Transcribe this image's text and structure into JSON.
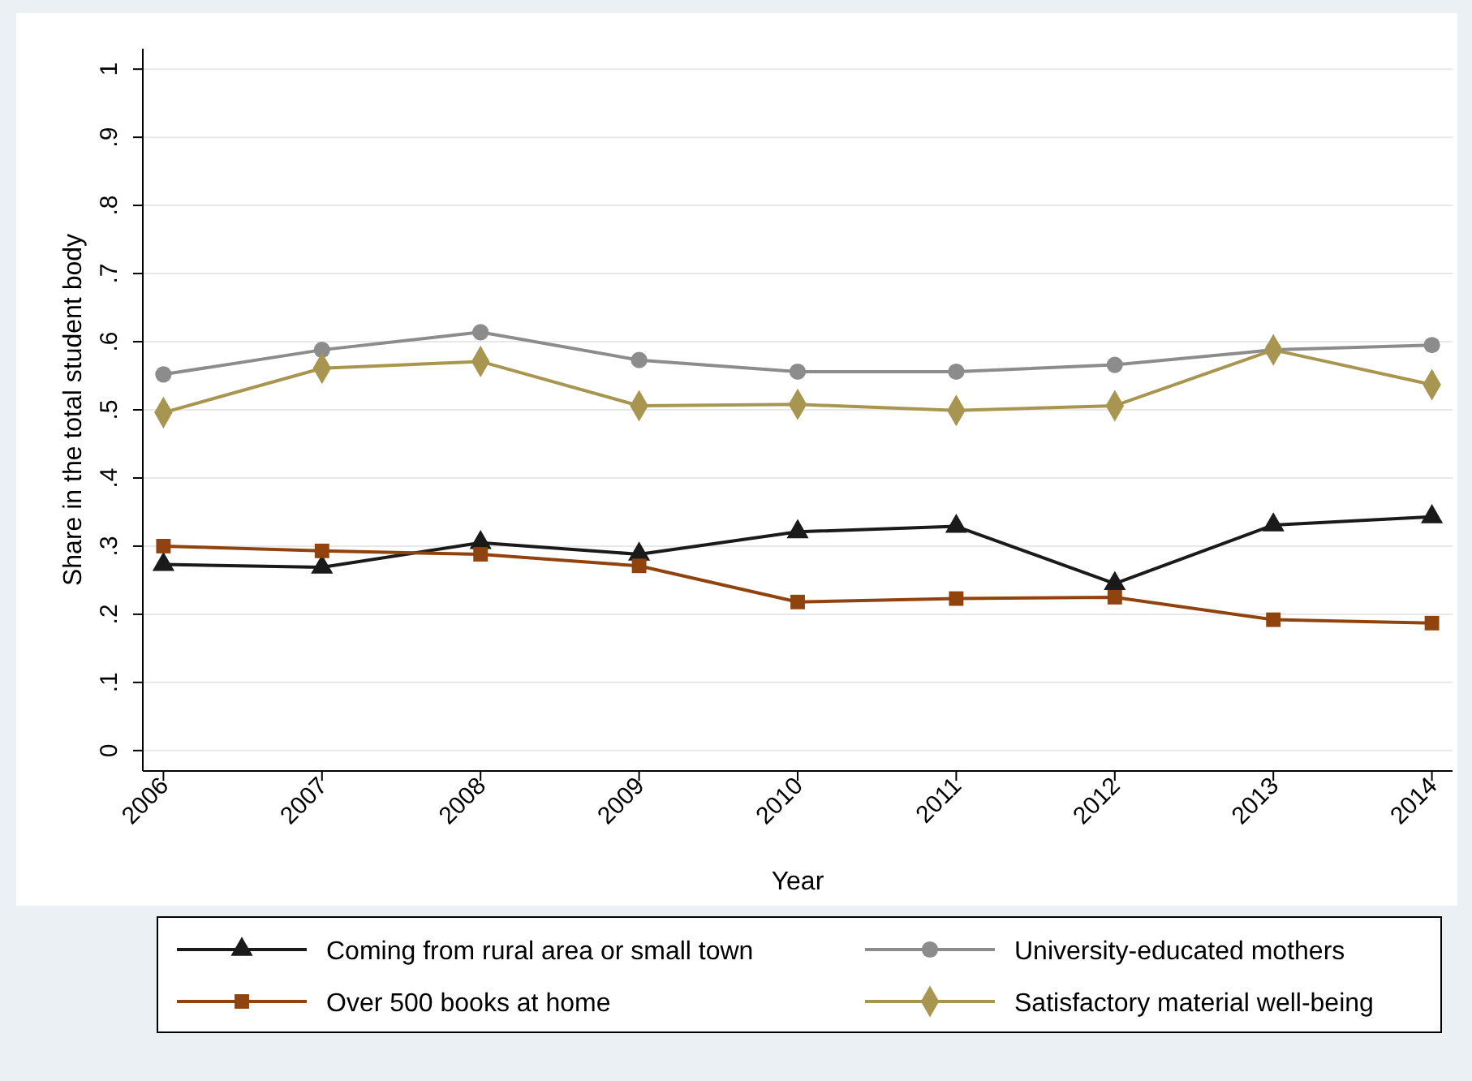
{
  "chart_data": {
    "type": "line",
    "xlabel": "Year",
    "ylabel": "Share in the total student body",
    "x": [
      2006,
      2007,
      2008,
      2009,
      2010,
      2011,
      2012,
      2013,
      2014
    ],
    "xlim": [
      2005.87,
      2014.13
    ],
    "xticks": [
      2006,
      2007,
      2008,
      2009,
      2010,
      2011,
      2012,
      2013,
      2014
    ],
    "ylim": [
      -0.03,
      1.03
    ],
    "yticks": [
      {
        "value": 0,
        "label": "0"
      },
      {
        "value": 0.1,
        "label": ".1"
      },
      {
        "value": 0.2,
        "label": ".2"
      },
      {
        "value": 0.3,
        "label": ".3"
      },
      {
        "value": 0.4,
        "label": ".4"
      },
      {
        "value": 0.5,
        "label": ".5"
      },
      {
        "value": 0.6,
        "label": ".6"
      },
      {
        "value": 0.7,
        "label": ".7"
      },
      {
        "value": 0.8,
        "label": ".8"
      },
      {
        "value": 0.9,
        "label": ".9"
      },
      {
        "value": 1,
        "label": "1"
      }
    ],
    "grid": "y",
    "legend": "bottom",
    "line_style": "solid",
    "series": [
      {
        "name": "Coming from rural area or small town",
        "color": "#1a1a1a",
        "marker": "triangle",
        "values": [
          0.273,
          0.269,
          0.305,
          0.288,
          0.321,
          0.329,
          0.245,
          0.331,
          0.343
        ]
      },
      {
        "name": "University-educated mothers",
        "color": "#8c8c8c",
        "marker": "circle",
        "values": [
          0.552,
          0.588,
          0.614,
          0.573,
          0.556,
          0.556,
          0.566,
          0.588,
          0.595
        ]
      },
      {
        "name": "Over 500 books at home",
        "color": "#90430e",
        "marker": "square",
        "values": [
          0.3,
          0.293,
          0.288,
          0.271,
          0.218,
          0.223,
          0.225,
          0.192,
          0.187
        ]
      },
      {
        "name": "Satisfactory material well-being",
        "color": "#a89650",
        "marker": "diamond",
        "values": [
          0.496,
          0.561,
          0.571,
          0.506,
          0.508,
          0.499,
          0.506,
          0.588,
          0.537
        ]
      }
    ]
  }
}
